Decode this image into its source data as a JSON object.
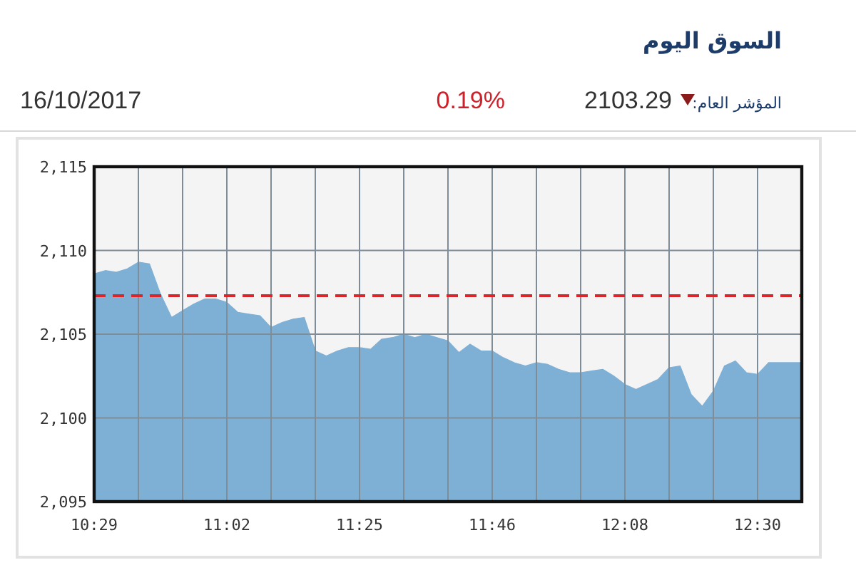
{
  "chart_data": {
    "type": "area",
    "title": "السوق اليوم",
    "annotations": [
      "المؤشر العام:",
      "2103.29",
      "0.19%",
      "16/10/2017"
    ],
    "categories": [
      "10:29",
      null,
      null,
      null,
      null,
      null,
      null,
      null,
      null,
      null,
      null,
      null,
      "11:02",
      null,
      null,
      null,
      null,
      null,
      null,
      null,
      null,
      null,
      null,
      null,
      "11:25",
      null,
      null,
      null,
      null,
      null,
      null,
      null,
      null,
      null,
      null,
      null,
      "11:46",
      null,
      null,
      null,
      null,
      null,
      null,
      null,
      null,
      null,
      null,
      null,
      "12:08",
      null,
      null,
      null,
      null,
      null,
      null,
      null,
      null,
      null,
      null,
      null,
      "12:30",
      null,
      null,
      null,
      null
    ],
    "values": [
      2108.6,
      2108.8,
      2108.7,
      2108.9,
      2109.3,
      2109.2,
      2107.4,
      2106.0,
      2106.4,
      2106.8,
      2107.1,
      2107.1,
      2106.9,
      2106.3,
      2106.2,
      2106.1,
      2105.4,
      2105.7,
      2105.9,
      2106.0,
      2104.0,
      2103.7,
      2104.0,
      2104.2,
      2104.2,
      2104.1,
      2104.7,
      2104.8,
      2105.0,
      2104.8,
      2105.0,
      2104.8,
      2104.6,
      2103.9,
      2104.4,
      2104.0,
      2104.0,
      2103.6,
      2103.3,
      2103.1,
      2103.3,
      2103.2,
      2102.9,
      2102.7,
      2102.7,
      2102.8,
      2102.9,
      2102.5,
      2102.0,
      2101.7,
      2102.0,
      2102.3,
      2103.0,
      2103.1,
      2101.4,
      2100.7,
      2101.6,
      2103.1,
      2103.4,
      2102.7,
      2102.6,
      2103.3,
      2103.3,
      2103.3,
      2103.3
    ],
    "color": "#7eb0d6",
    "ylim": [
      2095,
      2115
    ],
    "yticks": [
      {
        "value": 2095,
        "label": "2,095"
      },
      {
        "value": 2100,
        "label": "2,100"
      },
      {
        "value": 2105,
        "label": "2,105"
      },
      {
        "value": 2110,
        "label": "2,110"
      },
      {
        "value": 2115,
        "label": "2,115"
      }
    ],
    "grid": true,
    "ref_lines": [
      {
        "axis": "y",
        "value": 2107.3,
        "color": "#d9262b",
        "line_style": "dashed"
      }
    ]
  }
}
